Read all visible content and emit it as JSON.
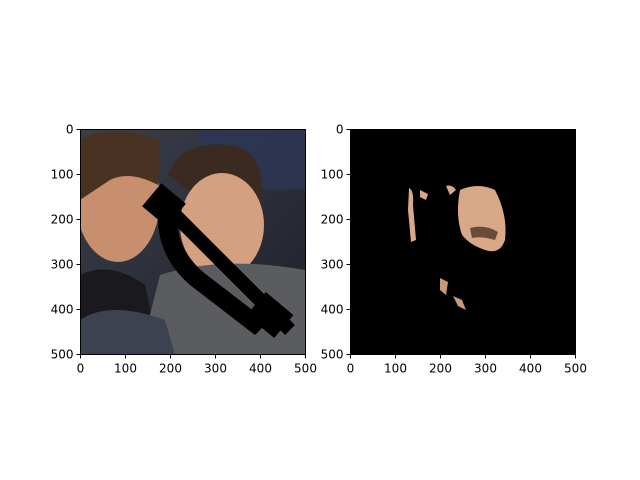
{
  "chart_data": [
    {
      "type": "image",
      "title": "",
      "xlabel": "",
      "ylabel": "",
      "xlim": [
        0,
        500
      ],
      "ylim": [
        500,
        0
      ],
      "xticks": [
        0,
        100,
        200,
        300,
        400,
        500
      ],
      "yticks": [
        0,
        100,
        200,
        300,
        400,
        500
      ],
      "grid": false,
      "content": "photo of two men with a black telephone-handset shaped mask overlaid"
    },
    {
      "type": "image",
      "title": "",
      "xlabel": "",
      "ylabel": "",
      "xlim": [
        0,
        500
      ],
      "ylim": [
        500,
        0
      ],
      "xticks": [
        0,
        100,
        200,
        300,
        400,
        500
      ],
      "yticks": [
        0,
        100,
        200,
        300,
        400,
        500
      ],
      "grid": false,
      "content": "black background showing only skin-colored face region segment"
    }
  ],
  "colors": {
    "mask": "#000000",
    "skin": "#d9a888",
    "background_dark": "#2a2f3a"
  }
}
